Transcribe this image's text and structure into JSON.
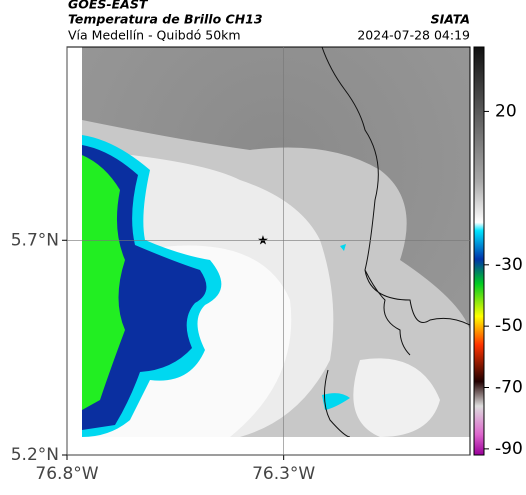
{
  "header": {
    "source": "GOES-EAST",
    "title": "Temperatura de Brillo CH13",
    "region": "Vía Medellín - Quibdó 50km",
    "agency": "SIATA",
    "timestamp": "2024-07-28 04:19"
  },
  "map": {
    "xlim": [
      -76.8,
      -75.87
    ],
    "ylim": [
      5.2,
      6.15
    ],
    "xticks": [
      {
        "value": -76.8,
        "label": "76.8°W"
      },
      {
        "value": -76.3,
        "label": "76.3°W"
      }
    ],
    "yticks": [
      {
        "value": 5.7,
        "label": "5.7°N"
      },
      {
        "value": 5.2,
        "label": "5.2°N"
      }
    ],
    "grid": true
  },
  "colorbar": {
    "lim": [
      -92,
      41
    ],
    "ticks": [
      20,
      -30,
      -50,
      -70,
      -90
    ]
  }
}
